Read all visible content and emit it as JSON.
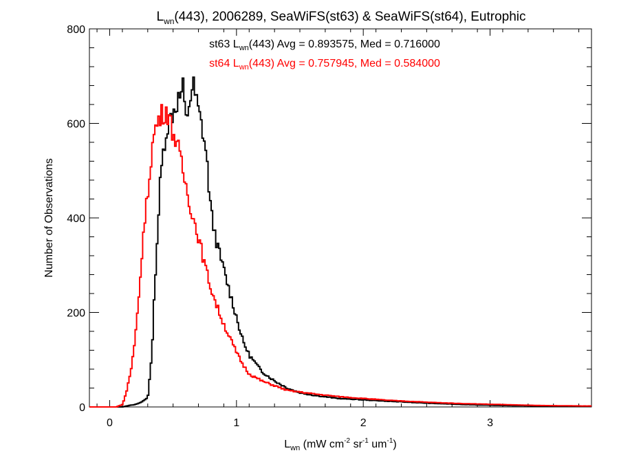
{
  "chart_data": {
    "type": "line",
    "step": true,
    "title": {
      "pre": "L",
      "sub": "wn",
      "post": "(443), 2006289, SeaWiFS(st63) & SeaWiFS(st64), Eutrophic"
    },
    "xlabel": {
      "pre": "L",
      "sub": "wn",
      "mid1": " (mW cm",
      "sup1": "-2",
      "mid2": " sr",
      "sup2": "-1",
      "mid3": " um",
      "sup3": "-1",
      "post": ")"
    },
    "ylabel": "Number of Observations",
    "xlim": [
      -0.16,
      3.8
    ],
    "ylim": [
      0,
      800
    ],
    "x_ticks": [
      0,
      1,
      2,
      3
    ],
    "x_ticklabels": [
      "0",
      "1",
      "2",
      "3"
    ],
    "y_ticks": [
      0,
      200,
      400,
      600,
      800
    ],
    "y_ticklabels": [
      "0",
      "200",
      "400",
      "600",
      "800"
    ],
    "grid": false,
    "legend": [
      {
        "pre": "st63 L",
        "sub": "wn",
        "post": "(443) Avg = 0.893575, Med = 0.716000",
        "color": "#000000"
      },
      {
        "pre": "st64 L",
        "sub": "wn",
        "post": "(443) Avg = 0.757945, Med = 0.584000",
        "color": "#ff0000"
      }
    ],
    "series": [
      {
        "color": "#000000",
        "x": [
          -0.16,
          0.1,
          0.15,
          0.2,
          0.25,
          0.3,
          0.33,
          0.36,
          0.4,
          0.43,
          0.46,
          0.5,
          0.53,
          0.56,
          0.58,
          0.6,
          0.63,
          0.66,
          0.7,
          0.73,
          0.76,
          0.8,
          0.85,
          0.9,
          0.95,
          1.0,
          1.05,
          1.1,
          1.2,
          1.3,
          1.4,
          1.5,
          1.6,
          1.8,
          2.0,
          2.2,
          2.5,
          2.8,
          3.1,
          3.4,
          3.8
        ],
        "values": [
          0,
          0,
          3,
          5,
          10,
          20,
          100,
          280,
          480,
          560,
          600,
          625,
          645,
          660,
          675,
          600,
          650,
          680,
          625,
          590,
          540,
          410,
          340,
          290,
          240,
          190,
          140,
          110,
          75,
          55,
          40,
          30,
          25,
          18,
          15,
          12,
          8,
          5,
          3,
          2,
          1
        ]
      },
      {
        "color": "#ff0000",
        "x": [
          -0.16,
          0.05,
          0.1,
          0.13,
          0.17,
          0.2,
          0.23,
          0.26,
          0.3,
          0.33,
          0.36,
          0.4,
          0.43,
          0.45,
          0.48,
          0.5,
          0.53,
          0.56,
          0.6,
          0.65,
          0.7,
          0.75,
          0.8,
          0.85,
          0.9,
          0.95,
          1.0,
          1.05,
          1.1,
          1.2,
          1.3,
          1.4,
          1.6,
          1.8,
          2.0,
          2.2,
          2.5,
          2.8,
          3.1,
          3.4,
          3.8
        ],
        "values": [
          0,
          0,
          5,
          30,
          80,
          140,
          230,
          350,
          450,
          540,
          590,
          615,
          625,
          630,
          600,
          580,
          560,
          520,
          470,
          410,
          360,
          300,
          250,
          210,
          175,
          145,
          115,
          90,
          70,
          55,
          45,
          35,
          28,
          22,
          18,
          14,
          10,
          7,
          5,
          3,
          2
        ]
      }
    ]
  }
}
